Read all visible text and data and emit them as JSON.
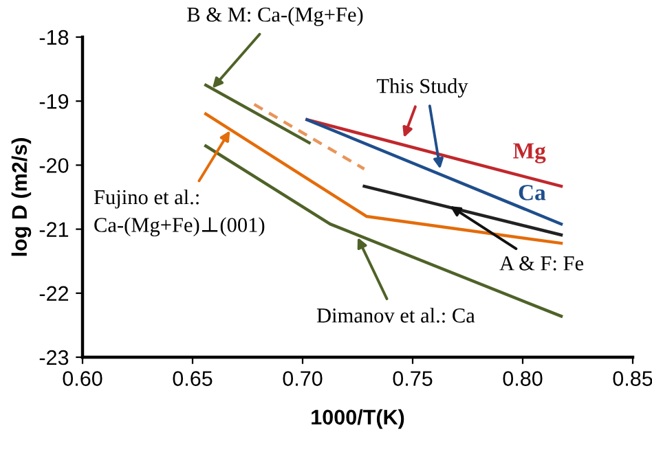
{
  "chart_data": {
    "type": "line",
    "xlabel": "1000/T(K)",
    "ylabel": "log D (m2/s)",
    "xlim": [
      0.6,
      0.85
    ],
    "xticks": [
      {
        "value": 0.6,
        "label": "0.60"
      },
      {
        "value": 0.65,
        "label": "0.65"
      },
      {
        "value": 0.7,
        "label": "0.70"
      },
      {
        "value": 0.75,
        "label": "0.75"
      },
      {
        "value": 0.8,
        "label": "0.80"
      },
      {
        "value": 0.85,
        "label": "0.85"
      }
    ],
    "ylim": [
      -23,
      -18
    ],
    "yticks": [
      -23,
      -22,
      -21,
      -20,
      -19,
      -18
    ],
    "grid": false,
    "legend": false,
    "marker": "none",
    "series": [
      {
        "color": "#4f6228",
        "x": [
          0.656,
          0.703
        ],
        "values": [
          -18.75,
          -19.65
        ]
      },
      {
        "color": "#e8955a",
        "x": [
          0.678,
          0.728
        ],
        "values": [
          -19.05,
          -20.06
        ],
        "line_style": "dashed"
      },
      {
        "color": "#e46c0a",
        "x": [
          0.656,
          0.729,
          0.8175
        ],
        "values": [
          -19.2,
          -20.8,
          -21.22
        ]
      },
      {
        "color": "#4f6228",
        "x": [
          0.656,
          0.7125,
          0.8175
        ],
        "values": [
          -19.7,
          -20.92,
          -22.36
        ]
      },
      {
        "name": "Mg",
        "color": "#c0282d",
        "x": [
          0.702,
          0.8175
        ],
        "values": [
          -19.29,
          -20.33
        ]
      },
      {
        "name": "Ca",
        "color": "#1f4e8c",
        "x": [
          0.702,
          0.8175
        ],
        "values": [
          -19.29,
          -20.92
        ]
      },
      {
        "color": "#222222",
        "x": [
          0.728,
          0.8175
        ],
        "values": [
          -20.33,
          -21.09
        ]
      }
    ],
    "annotations": [
      {
        "text": "B & M: Ca-(Mg+Fe)",
        "x": 0.659,
        "y": -18.8
      },
      {
        "text": "This Study",
        "x": 0.746,
        "y": -19.57
      },
      {
        "text": "Fujino et al.:\nCa-(Mg+Fe)⊥(001)",
        "x": 0.667,
        "y": -19.46
      },
      {
        "text": "A & F: Fe",
        "x": 0.767,
        "y": -20.64
      },
      {
        "text": "Dimanov et al.: Ca",
        "x": 0.725,
        "y": -21.13
      }
    ]
  }
}
